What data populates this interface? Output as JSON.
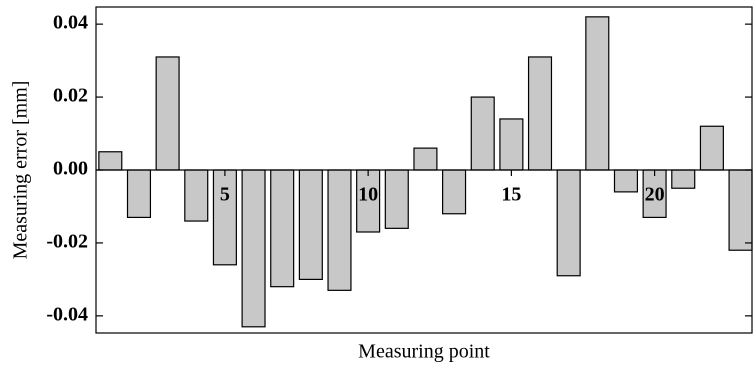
{
  "chart_data": {
    "type": "bar",
    "x_label": "Measuring point",
    "y_label": "Measuring error [mm]",
    "x": [
      1,
      2,
      3,
      4,
      5,
      6,
      7,
      8,
      9,
      10,
      11,
      12,
      13,
      14,
      15,
      16,
      17,
      18,
      19,
      20,
      21,
      22,
      23
    ],
    "values": [
      0.005,
      -0.013,
      0.031,
      -0.014,
      -0.026,
      -0.043,
      -0.032,
      -0.03,
      -0.033,
      -0.017,
      -0.016,
      0.006,
      -0.012,
      0.02,
      0.014,
      0.031,
      -0.029,
      0.042,
      -0.006,
      -0.013,
      -0.005,
      0.012,
      -0.022
    ],
    "color": "#c8c8c8",
    "xlim": [
      0.5,
      23.4
    ],
    "xticks": [
      5,
      10,
      15,
      20
    ],
    "ylim": [
      -0.0447,
      0.0447
    ],
    "yticks": [
      -0.04,
      -0.02,
      {
        "value": 0,
        "label": "0.00"
      },
      0.02,
      0.04
    ]
  }
}
